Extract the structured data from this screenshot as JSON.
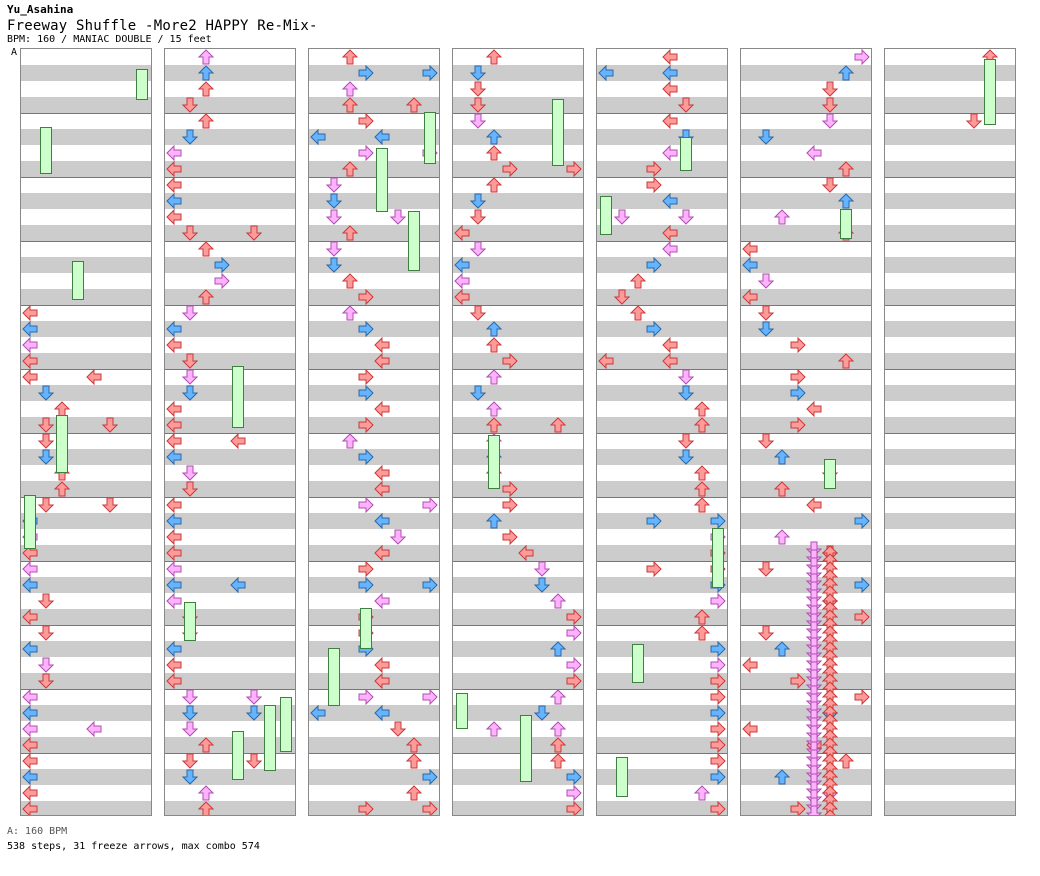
{
  "author": "Yu_Asahina",
  "song_title": "Freeway Shuffle -More2 HAPPY Re-Mix-",
  "meta_line": "BPM: 160 / MANIAC DOUBLE / 15 feet",
  "bpm_marker": "A",
  "footer": {
    "bpm_note": "A: 160 BPM",
    "stats": "538 steps, 31 freeze arrows, max combo 574"
  },
  "colors": {
    "red_arrow": "#ff9a9a",
    "red_stroke": "#c83a3a",
    "blue_arrow": "#66b3ff",
    "blue_stroke": "#2a6aa8",
    "pink_arrow": "#ffb3ff",
    "pink_stroke": "#b04cb0",
    "freeze_fill": "#ccffcc",
    "freeze_stroke": "#3f7f3f",
    "stripe_gray": "#cccccc"
  },
  "icons": {
    "left": "left-arrow-icon",
    "down": "down-arrow-icon",
    "up": "up-arrow-icon",
    "right": "right-arrow-icon"
  }
}
